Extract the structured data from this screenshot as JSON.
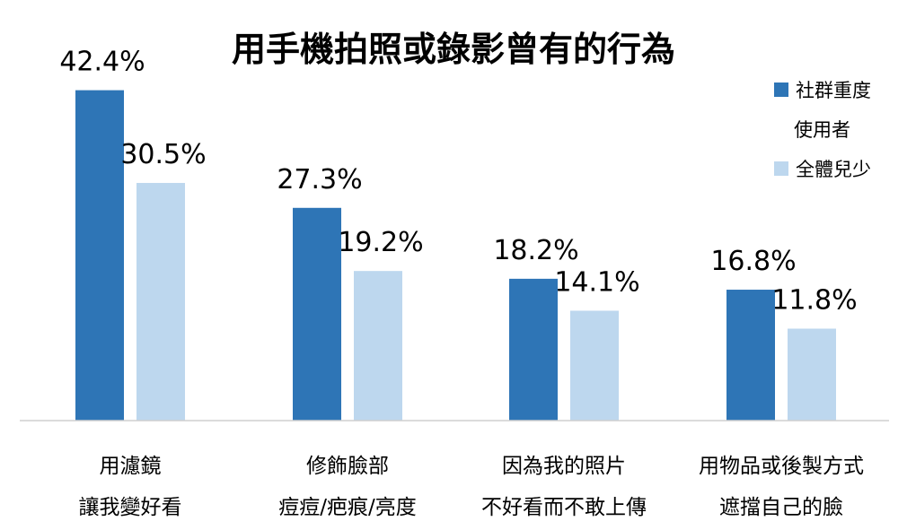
{
  "chart_data": {
    "type": "bar",
    "title": "用手機拍照或錄影曾有的行為",
    "xlabel": "",
    "ylabel": "",
    "ylim": [
      0,
      45
    ],
    "grid": false,
    "legend_position": "top-right",
    "categories": [
      [
        "用濾鏡",
        "讓我變好看"
      ],
      [
        "修飾臉部",
        "痘痘/疤痕/亮度"
      ],
      [
        "因為我的照片",
        "不好看而不敢上傳"
      ],
      [
        "用物品或後製方式",
        "遮擋自己的臉"
      ]
    ],
    "series": [
      {
        "name": [
          "社群重度",
          "使用者"
        ],
        "color": "#2E75B6",
        "values": [
          42.4,
          27.3,
          18.2,
          16.8
        ]
      },
      {
        "name": [
          "全體兒少"
        ],
        "color": "#BDD7EE",
        "values": [
          30.5,
          19.2,
          14.1,
          11.8
        ]
      }
    ],
    "value_suffix": "%"
  }
}
